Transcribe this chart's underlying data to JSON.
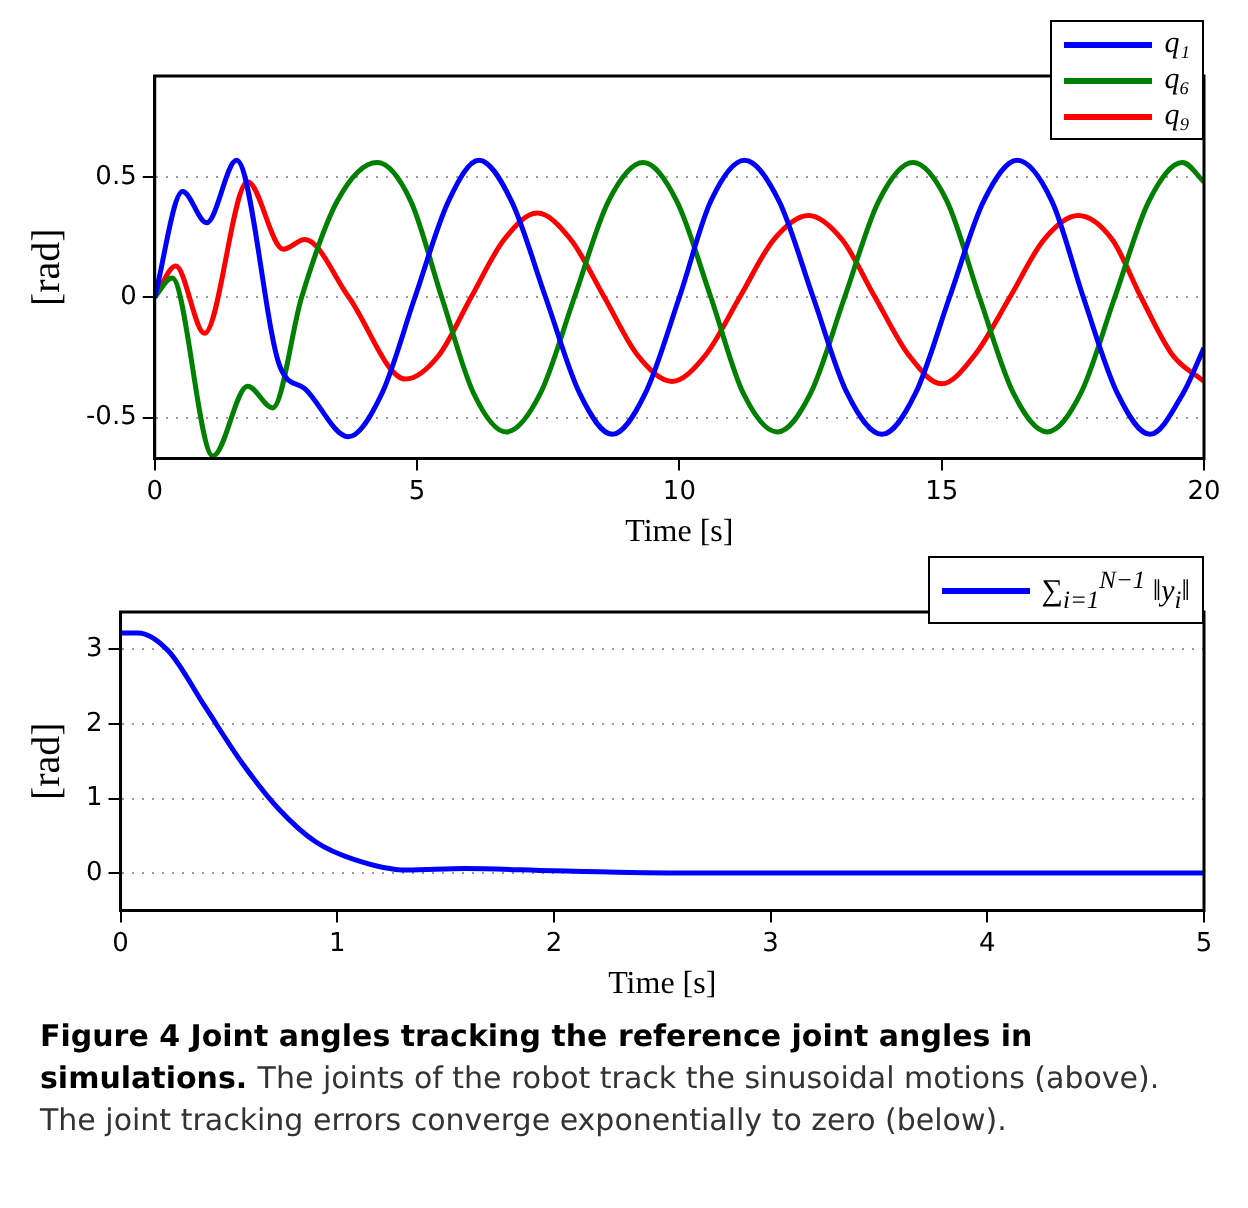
{
  "chart_data": [
    {
      "type": "line",
      "xlabel": "Time [s]",
      "ylabel": "[rad]",
      "xlim": [
        0,
        20
      ],
      "ylim": [
        -0.67,
        0.92
      ],
      "xticks": [
        0,
        5,
        10,
        15,
        20
      ],
      "yticks": [
        -0.5,
        0,
        0.5
      ],
      "grid": "y",
      "legend": "top right",
      "marker": "none",
      "series": [
        {
          "name": "q₁",
          "color": "#0000ff",
          "x": [
            0,
            0.53,
            0.99,
            1.56,
            2.39,
            2.86,
            3.69,
            4.33,
            4.96,
            5.6,
            6.18,
            6.8,
            7.45,
            8.1,
            8.72,
            9.35,
            10.0,
            10.6,
            11.24,
            11.9,
            12.55,
            13.2,
            13.86,
            14.5,
            15.15,
            15.8,
            16.44,
            17.1,
            17.7,
            18.35,
            18.97,
            19.6,
            20
          ],
          "values": [
            0,
            0.44,
            0.31,
            0.57,
            -0.29,
            -0.38,
            -0.58,
            -0.4,
            0,
            0.4,
            0.57,
            0.4,
            0,
            -0.4,
            -0.57,
            -0.4,
            0,
            0.4,
            0.57,
            0.4,
            0,
            -0.4,
            -0.57,
            -0.4,
            0,
            0.4,
            0.57,
            0.4,
            0,
            -0.4,
            -0.57,
            -0.4,
            -0.21
          ]
        },
        {
          "name": "q₆",
          "color": "#008000",
          "x": [
            0,
            0.33,
            1.11,
            1.77,
            2.25,
            2.8,
            3.48,
            4.24,
            4.88,
            5.47,
            6.08,
            6.7,
            7.35,
            8.0,
            8.65,
            9.31,
            9.95,
            10.6,
            11.22,
            11.87,
            12.5,
            13.15,
            13.8,
            14.45,
            15.1,
            15.72,
            16.37,
            17.01,
            17.65,
            18.3,
            18.95,
            19.59,
            20
          ],
          "values": [
            0,
            0.08,
            -0.66,
            -0.37,
            -0.46,
            0,
            0.4,
            0.56,
            0.4,
            0,
            -0.4,
            -0.56,
            -0.4,
            0,
            0.4,
            0.56,
            0.4,
            0,
            -0.4,
            -0.56,
            -0.4,
            0,
            0.4,
            0.56,
            0.4,
            0,
            -0.4,
            -0.56,
            -0.4,
            0,
            0.4,
            0.56,
            0.48
          ]
        },
        {
          "name": "q₉",
          "color": "#ff0000",
          "x": [
            0,
            0.4,
            0.95,
            1.77,
            2.45,
            2.86,
            3.7,
            4.78,
            5.42,
            6.03,
            6.66,
            7.29,
            7.93,
            8.57,
            9.2,
            9.86,
            10.5,
            11.15,
            11.8,
            12.46,
            13.1,
            13.73,
            14.37,
            15.0,
            15.63,
            16.3,
            16.95,
            17.6,
            18.25,
            18.8,
            19.4,
            20
          ],
          "values": [
            0,
            0.13,
            -0.15,
            0.48,
            0.2,
            0.24,
            0,
            -0.34,
            -0.24,
            0,
            0.24,
            0.35,
            0.24,
            0,
            -0.24,
            -0.35,
            -0.24,
            0,
            0.24,
            0.34,
            0.24,
            0,
            -0.24,
            -0.36,
            -0.24,
            0,
            0.24,
            0.34,
            0.24,
            0,
            -0.24,
            -0.35
          ]
        }
      ]
    },
    {
      "type": "line",
      "xlabel": "Time [s]",
      "ylabel": "[rad]",
      "xlim": [
        0,
        5
      ],
      "ylim": [
        -0.5,
        3.5
      ],
      "xticks": [
        0,
        1,
        2,
        3,
        4,
        5
      ],
      "yticks": [
        0,
        1,
        2,
        3
      ],
      "grid": "y",
      "legend": "top right",
      "marker": "none",
      "series": [
        {
          "name": "∑$_{i=1}$$^{N−1}$ ‖y$_{i}$‖",
          "color": "#0000ff",
          "x": [
            0,
            0.08,
            0.22,
            0.39,
            0.56,
            0.73,
            0.9,
            1.08,
            1.32,
            1.59,
            2.0,
            2.62,
            5
          ],
          "values": [
            3.22,
            3.22,
            2.98,
            2.23,
            1.48,
            0.86,
            0.42,
            0.18,
            0.04,
            0.06,
            0.03,
            0,
            0
          ]
        }
      ],
      "annotations": [
        "Figure 4 Joint angles tracking the reference joint angles in simulations.",
        "The joints of the robot track the sinusoidal motions (above). The joint tracking errors converge exponentially to zero (below)."
      ]
    }
  ]
}
